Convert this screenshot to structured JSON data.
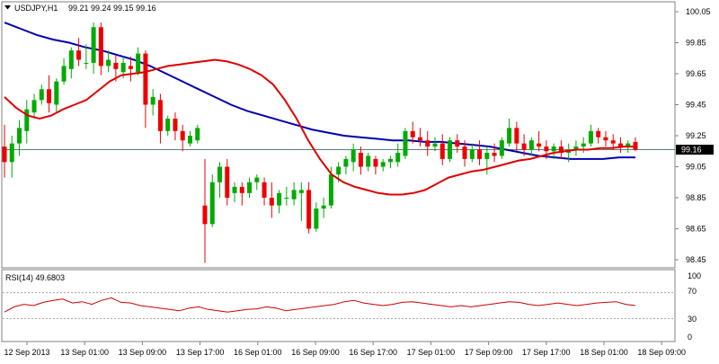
{
  "header": {
    "dropdown_icon": "triangle-down",
    "symbol": "USDJPY,H1",
    "ohlc": "99.21 99.24 99.15 99.16"
  },
  "price_axis": {
    "ticks": [
      "100.05",
      "99.85",
      "99.65",
      "99.45",
      "99.25",
      "99.05",
      "98.85",
      "98.65",
      "98.45"
    ],
    "current_price": "99.16",
    "current_price_value": 99.16
  },
  "rsi": {
    "label": "RSI(14) 49.6803",
    "levels": [
      70,
      30
    ],
    "ticks": [
      "70",
      "30",
      "0"
    ],
    "max_tick": "100"
  },
  "time_axis": {
    "labels": [
      "12 Sep 2013",
      "13 Sep 01:00",
      "13 Sep 09:00",
      "13 Sep 17:00",
      "16 Sep 01:00",
      "16 Sep 09:00",
      "16 Sep 17:00",
      "17 Sep 01:00",
      "17 Sep 09:00",
      "17 Sep 17:00",
      "18 Sep 01:00",
      "18 Sep 09:00"
    ]
  },
  "colors": {
    "bull": "#00aa00",
    "bear": "#ee0000",
    "ma_fast": "#dd0000",
    "ma_slow": "#0000aa",
    "rsi_line": "#cc0000",
    "price_line": "#557f7f"
  },
  "chart_data": {
    "type": "candlestick",
    "ylim": [
      98.4,
      100.08
    ],
    "candles": [
      [
        99.18,
        99.32,
        98.98,
        99.08
      ],
      [
        99.08,
        99.25,
        98.98,
        99.2
      ],
      [
        99.2,
        99.35,
        99.12,
        99.3
      ],
      [
        99.28,
        99.48,
        99.2,
        99.42
      ],
      [
        99.4,
        99.52,
        99.36,
        99.48
      ],
      [
        99.48,
        99.58,
        99.45,
        99.55
      ],
      [
        99.55,
        99.64,
        99.4,
        99.46
      ],
      [
        99.45,
        99.62,
        99.4,
        99.6
      ],
      [
        99.6,
        99.75,
        99.58,
        99.7
      ],
      [
        99.68,
        99.82,
        99.62,
        99.8
      ],
      [
        99.8,
        99.88,
        99.7,
        99.74
      ],
      [
        99.72,
        99.84,
        99.68,
        99.72
      ],
      [
        99.72,
        99.98,
        99.65,
        99.95
      ],
      [
        99.95,
        99.98,
        99.64,
        99.7
      ],
      [
        99.7,
        99.8,
        99.66,
        99.74
      ],
      [
        99.72,
        99.77,
        99.6,
        99.68
      ],
      [
        99.66,
        99.76,
        99.62,
        99.72
      ],
      [
        99.7,
        99.76,
        99.6,
        99.68
      ],
      [
        99.66,
        99.82,
        99.64,
        99.78
      ],
      [
        99.78,
        99.8,
        99.3,
        99.45
      ],
      [
        99.45,
        99.55,
        99.38,
        99.5
      ],
      [
        99.48,
        99.52,
        99.2,
        99.28
      ],
      [
        99.28,
        99.38,
        99.25,
        99.36
      ],
      [
        99.36,
        99.4,
        99.22,
        99.28
      ],
      [
        99.28,
        99.32,
        99.15,
        99.22
      ],
      [
        99.2,
        99.28,
        99.18,
        99.25
      ],
      [
        99.22,
        99.32,
        99.2,
        99.3
      ],
      [
        98.8,
        99.1,
        98.43,
        98.68
      ],
      [
        98.68,
        99.0,
        98.66,
        98.95
      ],
      [
        98.95,
        99.08,
        98.85,
        99.05
      ],
      [
        99.05,
        99.1,
        98.8,
        98.85
      ],
      [
        98.88,
        98.95,
        98.82,
        98.92
      ],
      [
        98.92,
        98.95,
        98.8,
        98.88
      ],
      [
        98.88,
        98.98,
        98.85,
        98.95
      ],
      [
        98.95,
        99.0,
        98.9,
        98.98
      ],
      [
        98.95,
        98.98,
        98.8,
        98.85
      ],
      [
        98.85,
        98.95,
        98.72,
        98.8
      ],
      [
        98.8,
        98.9,
        98.75,
        98.88
      ],
      [
        98.85,
        98.92,
        98.8,
        98.85
      ],
      [
        98.84,
        98.95,
        98.8,
        98.9
      ],
      [
        98.88,
        98.95,
        98.7,
        98.9
      ],
      [
        98.9,
        98.95,
        98.62,
        98.65
      ],
      [
        98.65,
        98.82,
        98.63,
        98.78
      ],
      [
        98.78,
        98.85,
        98.72,
        98.8
      ],
      [
        98.8,
        99.05,
        98.78,
        99.0
      ],
      [
        99.0,
        99.08,
        98.95,
        99.05
      ],
      [
        99.05,
        99.12,
        99.0,
        99.1
      ],
      [
        99.08,
        99.2,
        99.02,
        99.16
      ],
      [
        99.14,
        99.18,
        99.0,
        99.05
      ],
      [
        99.05,
        99.14,
        99.02,
        99.12
      ],
      [
        99.1,
        99.12,
        99.0,
        99.05
      ],
      [
        99.05,
        99.1,
        99.02,
        99.08
      ],
      [
        99.08,
        99.12,
        99.04,
        99.1
      ],
      [
        99.08,
        99.2,
        99.05,
        99.14
      ],
      [
        99.12,
        99.3,
        99.1,
        99.28
      ],
      [
        99.28,
        99.34,
        99.2,
        99.24
      ],
      [
        99.24,
        99.3,
        99.18,
        99.22
      ],
      [
        99.22,
        99.28,
        99.12,
        99.18
      ],
      [
        99.18,
        99.24,
        99.15,
        99.2
      ],
      [
        99.2,
        99.26,
        99.06,
        99.1
      ],
      [
        99.1,
        99.24,
        99.08,
        99.22
      ],
      [
        99.22,
        99.26,
        99.14,
        99.18
      ],
      [
        99.18,
        99.22,
        99.05,
        99.1
      ],
      [
        99.1,
        99.2,
        99.08,
        99.16
      ],
      [
        99.16,
        99.22,
        99.06,
        99.1
      ],
      [
        99.1,
        99.18,
        99.0,
        99.14
      ],
      [
        99.14,
        99.2,
        99.08,
        99.12
      ],
      [
        99.12,
        99.24,
        99.1,
        99.22
      ],
      [
        99.2,
        99.36,
        99.18,
        99.3
      ],
      [
        99.3,
        99.34,
        99.15,
        99.2
      ],
      [
        99.2,
        99.26,
        99.12,
        99.16
      ],
      [
        99.16,
        99.24,
        99.12,
        99.22
      ],
      [
        99.2,
        99.28,
        99.15,
        99.18
      ],
      [
        99.18,
        99.22,
        99.1,
        99.15
      ],
      [
        99.15,
        99.2,
        99.1,
        99.18
      ],
      [
        99.18,
        99.22,
        99.1,
        99.14
      ],
      [
        99.14,
        99.2,
        99.08,
        99.16
      ],
      [
        99.16,
        99.22,
        99.12,
        99.18
      ],
      [
        99.18,
        99.24,
        99.14,
        99.2
      ],
      [
        99.2,
        99.32,
        99.18,
        99.28
      ],
      [
        99.28,
        99.3,
        99.2,
        99.24
      ],
      [
        99.24,
        99.28,
        99.18,
        99.22
      ],
      [
        99.22,
        99.26,
        99.16,
        99.2
      ],
      [
        99.2,
        99.24,
        99.14,
        99.18
      ],
      [
        99.18,
        99.22,
        99.14,
        99.2
      ],
      [
        99.21,
        99.24,
        99.15,
        99.16
      ]
    ],
    "ma_fast": [
      99.5,
      99.43,
      99.38,
      99.36,
      99.38,
      99.42,
      99.45,
      99.48,
      99.54,
      99.6,
      99.64,
      99.65,
      99.66,
      99.68,
      99.7,
      99.71,
      99.72,
      99.73,
      99.74,
      99.73,
      99.71,
      99.68,
      99.64,
      99.58,
      99.48,
      99.36,
      99.22,
      99.1,
      99.0,
      98.95,
      98.92,
      98.9,
      98.88,
      98.87,
      98.87,
      98.88,
      98.9,
      98.94,
      98.98,
      99.0,
      99.02,
      99.03,
      99.05,
      99.07,
      99.09,
      99.1,
      99.12,
      99.14,
      99.15,
      99.16,
      99.16,
      99.17,
      99.17,
      99.18,
      99.18
    ],
    "ma_slow": [
      99.98,
      99.94,
      99.9,
      99.87,
      99.85,
      99.82,
      99.8,
      99.77,
      99.74,
      99.7,
      99.65,
      99.6,
      99.55,
      99.5,
      99.45,
      99.41,
      99.38,
      99.35,
      99.32,
      99.29,
      99.27,
      99.25,
      99.24,
      99.23,
      99.22,
      99.22,
      99.21,
      99.21,
      99.2,
      99.19,
      99.18,
      99.16,
      99.14,
      99.12,
      99.11,
      99.1,
      99.1,
      99.1,
      99.11,
      99.11
    ],
    "rsi_values": [
      40,
      48,
      52,
      50,
      55,
      58,
      60,
      54,
      56,
      52,
      58,
      62,
      55,
      54,
      50,
      48,
      46,
      44,
      42,
      46,
      48,
      44,
      42,
      40,
      42,
      44,
      45,
      48,
      46,
      42,
      44,
      46,
      48,
      50,
      52,
      56,
      58,
      54,
      52,
      50,
      52,
      55,
      56,
      54,
      52,
      50,
      48,
      50,
      48,
      50,
      52,
      54,
      56,
      55,
      52,
      50,
      52,
      54,
      52,
      50,
      52,
      54,
      55,
      56,
      52,
      50
    ]
  }
}
